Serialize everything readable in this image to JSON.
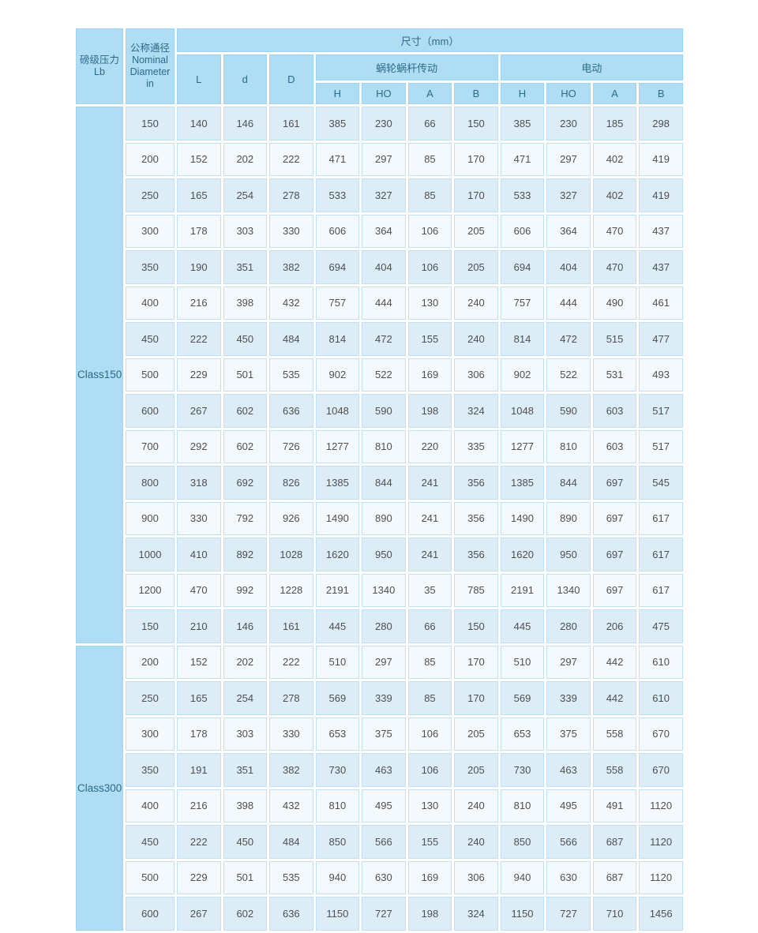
{
  "colors": {
    "header_bg": "#aeddf4",
    "row_blue": "#dcedf8",
    "row_light": "#f3f9fd",
    "border_blue": "#c4dfef",
    "header_text": "#2c6b88",
    "data_text": "#4f4f4f"
  },
  "table": {
    "header": {
      "pressure": "磅级压力\nLb",
      "diameter": "公称通径\nNominal\nDiameter\nin",
      "size_title": "尺寸（mm）",
      "dim_cols": [
        "L",
        "d",
        "D"
      ],
      "group_worm": "蜗轮蜗杆传动",
      "group_electric": "电动",
      "sub_cols": [
        "H",
        "HO",
        "A",
        "B",
        "H",
        "HO",
        "A",
        "B"
      ]
    },
    "groups": [
      {
        "label": "Class150",
        "rows": [
          [
            "150",
            "140",
            "146",
            "161",
            "385",
            "230",
            "66",
            "150",
            "385",
            "230",
            "185",
            "298"
          ],
          [
            "200",
            "152",
            "202",
            "222",
            "471",
            "297",
            "85",
            "170",
            "471",
            "297",
            "402",
            "419"
          ],
          [
            "250",
            "165",
            "254",
            "278",
            "533",
            "327",
            "85",
            "170",
            "533",
            "327",
            "402",
            "419"
          ],
          [
            "300",
            "178",
            "303",
            "330",
            "606",
            "364",
            "106",
            "205",
            "606",
            "364",
            "470",
            "437"
          ],
          [
            "350",
            "190",
            "351",
            "382",
            "694",
            "404",
            "106",
            "205",
            "694",
            "404",
            "470",
            "437"
          ],
          [
            "400",
            "216",
            "398",
            "432",
            "757",
            "444",
            "130",
            "240",
            "757",
            "444",
            "490",
            "461"
          ],
          [
            "450",
            "222",
            "450",
            "484",
            "814",
            "472",
            "155",
            "240",
            "814",
            "472",
            "515",
            "477"
          ],
          [
            "500",
            "229",
            "501",
            "535",
            "902",
            "522",
            "169",
            "306",
            "902",
            "522",
            "531",
            "493"
          ],
          [
            "600",
            "267",
            "602",
            "636",
            "1048",
            "590",
            "198",
            "324",
            "1048",
            "590",
            "603",
            "517"
          ],
          [
            "700",
            "292",
            "602",
            "726",
            "1277",
            "810",
            "220",
            "335",
            "1277",
            "810",
            "603",
            "517"
          ],
          [
            "800",
            "318",
            "692",
            "826",
            "1385",
            "844",
            "241",
            "356",
            "1385",
            "844",
            "697",
            "545"
          ],
          [
            "900",
            "330",
            "792",
            "926",
            "1490",
            "890",
            "241",
            "356",
            "1490",
            "890",
            "697",
            "617"
          ],
          [
            "1000",
            "410",
            "892",
            "1028",
            "1620",
            "950",
            "241",
            "356",
            "1620",
            "950",
            "697",
            "617"
          ],
          [
            "1200",
            "470",
            "992",
            "1228",
            "2191",
            "1340",
            "35",
            "785",
            "2191",
            "1340",
            "697",
            "617"
          ],
          [
            "150",
            "210",
            "146",
            "161",
            "445",
            "280",
            "66",
            "150",
            "445",
            "280",
            "206",
            "475"
          ]
        ]
      },
      {
        "label": "Class300",
        "rows": [
          [
            "200",
            "152",
            "202",
            "222",
            "510",
            "297",
            "85",
            "170",
            "510",
            "297",
            "442",
            "610"
          ],
          [
            "250",
            "165",
            "254",
            "278",
            "569",
            "339",
            "85",
            "170",
            "569",
            "339",
            "442",
            "610"
          ],
          [
            "300",
            "178",
            "303",
            "330",
            "653",
            "375",
            "106",
            "205",
            "653",
            "375",
            "558",
            "670"
          ],
          [
            "350",
            "191",
            "351",
            "382",
            "730",
            "463",
            "106",
            "205",
            "730",
            "463",
            "558",
            "670"
          ],
          [
            "400",
            "216",
            "398",
            "432",
            "810",
            "495",
            "130",
            "240",
            "810",
            "495",
            "491",
            "1120"
          ],
          [
            "450",
            "222",
            "450",
            "484",
            "850",
            "566",
            "155",
            "240",
            "850",
            "566",
            "687",
            "1120"
          ],
          [
            "500",
            "229",
            "501",
            "535",
            "940",
            "630",
            "169",
            "306",
            "940",
            "630",
            "687",
            "1120"
          ],
          [
            "600",
            "267",
            "602",
            "636",
            "1150",
            "727",
            "198",
            "324",
            "1150",
            "727",
            "710",
            "1456"
          ]
        ]
      }
    ]
  }
}
